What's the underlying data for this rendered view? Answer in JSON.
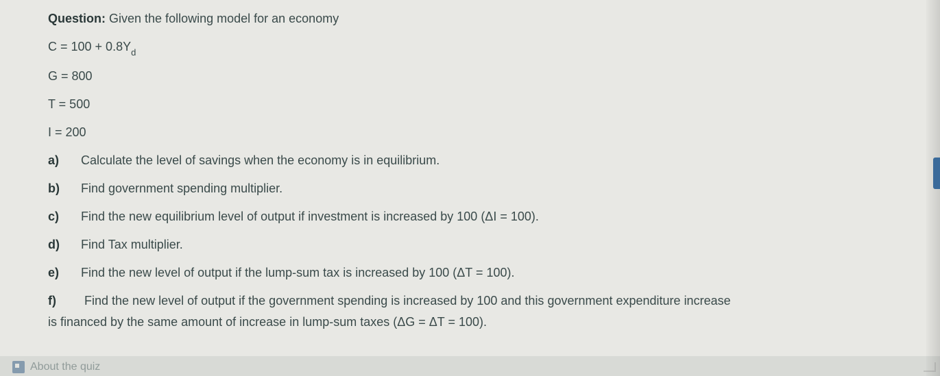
{
  "question": {
    "label": "Question:",
    "text": "Given the following model for an economy"
  },
  "equations": {
    "c_pre": "C = 100 + 0.8Y",
    "c_sub": "d",
    "g": "G = 800",
    "t": "T = 500",
    "i": "I = 200"
  },
  "parts": {
    "a": {
      "label": "a)",
      "text": "Calculate the level of savings when the economy is in equilibrium."
    },
    "b": {
      "label": "b)",
      "text": "Find government spending multiplier."
    },
    "c": {
      "label": "c)",
      "text": "Find the new equilibrium level of output if investment is increased by 100 (ΔI = 100)."
    },
    "d": {
      "label": "d)",
      "text": "Find Tax multiplier."
    },
    "e": {
      "label": "e)",
      "text": "Find the new level of output if the lump-sum tax is increased by 100 (ΔT = 100)."
    },
    "f": {
      "label": "f)",
      "text_line1": "Find the new level of output if the government spending is increased by 100 and this government expenditure increase",
      "text_line2": "is financed by the same amount of increase in lump-sum taxes (ΔG = ΔT = 100)."
    }
  },
  "footer": {
    "text": "About the quiz"
  },
  "colors": {
    "page_bg": "#e8e8e4",
    "body_bg": "#d8dad6",
    "text": "#3a4a4a",
    "bold_text": "#2a3838",
    "accent": "#3a6a9a",
    "footer_icon": "#5a7a9a"
  }
}
